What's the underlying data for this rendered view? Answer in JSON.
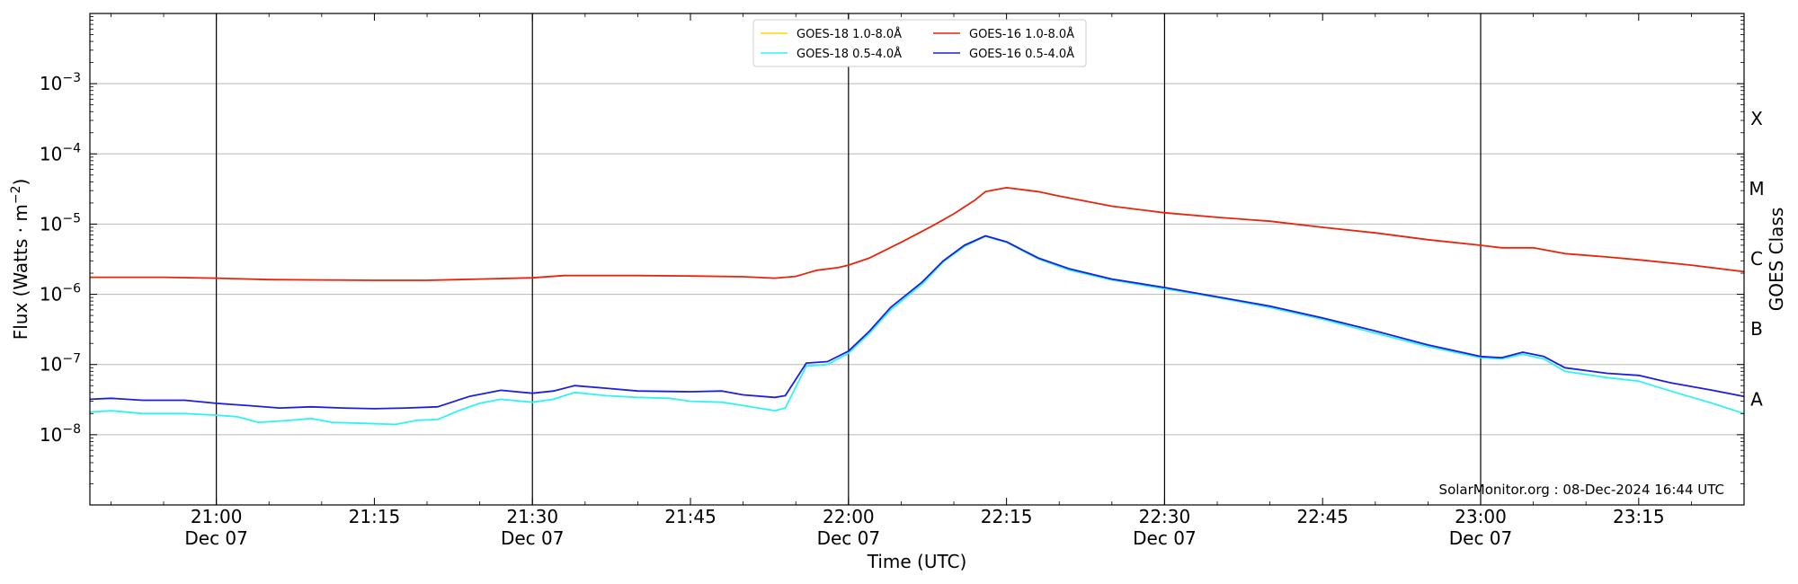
{
  "chart_data": {
    "type": "line",
    "title": "",
    "xlabel": "Time (UTC)",
    "ylabel": "Flux (Watts · m⁻²)",
    "right_label": "GOES Class",
    "y_scale": "log",
    "ylim": [
      1e-09,
      0.01
    ],
    "xlim_minutes": [
      "20:48",
      "23:25"
    ],
    "grid": "horizontal",
    "legend_position": "top-center",
    "credit": "SolarMonitor.org : 08-Dec-2024 16:44 UTC",
    "x_ticks": [
      {
        "time": "21:00",
        "label": "21:00",
        "sublabel": "Dec 07"
      },
      {
        "time": "21:15",
        "label": "21:15",
        "sublabel": ""
      },
      {
        "time": "21:30",
        "label": "21:30",
        "sublabel": "Dec 07"
      },
      {
        "time": "21:45",
        "label": "21:45",
        "sublabel": ""
      },
      {
        "time": "22:00",
        "label": "22:00",
        "sublabel": "Dec 07"
      },
      {
        "time": "22:15",
        "label": "22:15",
        "sublabel": ""
      },
      {
        "time": "22:30",
        "label": "22:30",
        "sublabel": "Dec 07"
      },
      {
        "time": "22:45",
        "label": "22:45",
        "sublabel": ""
      },
      {
        "time": "23:00",
        "label": "23:00",
        "sublabel": "Dec 07"
      },
      {
        "time": "23:15",
        "label": "23:15",
        "sublabel": ""
      }
    ],
    "vertical_markers": [
      "21:00",
      "21:30",
      "22:00",
      "22:30",
      "23:00"
    ],
    "y_ticks": [
      {
        "value": 1e-08,
        "base": "10",
        "exp": "−8"
      },
      {
        "value": 1e-07,
        "base": "10",
        "exp": "−7"
      },
      {
        "value": 1e-06,
        "base": "10",
        "exp": "−6"
      },
      {
        "value": 1e-05,
        "base": "10",
        "exp": "−5"
      },
      {
        "value": 0.0001,
        "base": "10",
        "exp": "−4"
      },
      {
        "value": 0.001,
        "base": "10",
        "exp": "−3"
      }
    ],
    "goes_classes": [
      {
        "label": "A",
        "value": 3.2e-08
      },
      {
        "label": "B",
        "value": 3.2e-07
      },
      {
        "label": "C",
        "value": 3.2e-06
      },
      {
        "label": "M",
        "value": 3.2e-05
      },
      {
        "label": "X",
        "value": 0.00032
      }
    ],
    "series": [
      {
        "name": "GOES-18 1.0-8.0Å",
        "color": "#ffd700",
        "points": []
      },
      {
        "name": "GOES-16 1.0-8.0Å",
        "color": "#e8240c",
        "points": [
          [
            "20:48",
            1.75e-06
          ],
          [
            "20:55",
            1.75e-06
          ],
          [
            "21:00",
            1.7e-06
          ],
          [
            "21:05",
            1.62e-06
          ],
          [
            "21:10",
            1.6e-06
          ],
          [
            "21:15",
            1.58e-06
          ],
          [
            "21:20",
            1.58e-06
          ],
          [
            "21:25",
            1.65e-06
          ],
          [
            "21:30",
            1.72e-06
          ],
          [
            "21:33",
            1.85e-06
          ],
          [
            "21:40",
            1.85e-06
          ],
          [
            "21:45",
            1.82e-06
          ],
          [
            "21:50",
            1.78e-06
          ],
          [
            "21:53",
            1.7e-06
          ],
          [
            "21:55",
            1.8e-06
          ],
          [
            "21:57",
            2.2e-06
          ],
          [
            "21:59",
            2.4e-06
          ],
          [
            "22:00",
            2.6e-06
          ],
          [
            "22:02",
            3.3e-06
          ],
          [
            "22:05",
            5.5e-06
          ],
          [
            "22:08",
            9.5e-06
          ],
          [
            "22:10",
            1.4e-05
          ],
          [
            "22:12",
            2.2e-05
          ],
          [
            "22:13",
            2.9e-05
          ],
          [
            "22:15",
            3.3e-05
          ],
          [
            "22:18",
            2.9e-05
          ],
          [
            "22:20",
            2.5e-05
          ],
          [
            "22:25",
            1.8e-05
          ],
          [
            "22:30",
            1.45e-05
          ],
          [
            "22:35",
            1.25e-05
          ],
          [
            "22:40",
            1.1e-05
          ],
          [
            "22:45",
            9e-06
          ],
          [
            "22:50",
            7.5e-06
          ],
          [
            "22:55",
            6e-06
          ],
          [
            "23:00",
            5e-06
          ],
          [
            "23:02",
            4.6e-06
          ],
          [
            "23:05",
            4.6e-06
          ],
          [
            "23:08",
            3.8e-06
          ],
          [
            "23:12",
            3.4e-06
          ],
          [
            "23:15",
            3.1e-06
          ],
          [
            "23:20",
            2.6e-06
          ],
          [
            "23:25",
            2.1e-06
          ]
        ]
      },
      {
        "name": "GOES-18 0.5-4.0Å",
        "color": "#2ef3f3",
        "points": [
          [
            "20:48",
            2.1e-08
          ],
          [
            "20:50",
            2.2e-08
          ],
          [
            "20:53",
            2e-08
          ],
          [
            "20:57",
            2e-08
          ],
          [
            "21:00",
            1.9e-08
          ],
          [
            "21:02",
            1.8e-08
          ],
          [
            "21:04",
            1.5e-08
          ],
          [
            "21:07",
            1.6e-08
          ],
          [
            "21:09",
            1.7e-08
          ],
          [
            "21:11",
            1.5e-08
          ],
          [
            "21:14",
            1.45e-08
          ],
          [
            "21:17",
            1.4e-08
          ],
          [
            "21:19",
            1.6e-08
          ],
          [
            "21:21",
            1.65e-08
          ],
          [
            "21:23",
            2.2e-08
          ],
          [
            "21:25",
            2.8e-08
          ],
          [
            "21:27",
            3.2e-08
          ],
          [
            "21:30",
            2.9e-08
          ],
          [
            "21:32",
            3.2e-08
          ],
          [
            "21:34",
            4e-08
          ],
          [
            "21:37",
            3.6e-08
          ],
          [
            "21:40",
            3.4e-08
          ],
          [
            "21:43",
            3.3e-08
          ],
          [
            "21:45",
            3e-08
          ],
          [
            "21:48",
            2.9e-08
          ],
          [
            "21:50",
            2.6e-08
          ],
          [
            "21:53",
            2.2e-08
          ],
          [
            "21:54",
            2.4e-08
          ],
          [
            "21:56",
            9.5e-08
          ],
          [
            "21:58",
            1e-07
          ],
          [
            "22:00",
            1.45e-07
          ],
          [
            "22:02",
            2.8e-07
          ],
          [
            "22:04",
            6e-07
          ],
          [
            "22:07",
            1.4e-06
          ],
          [
            "22:09",
            2.9e-06
          ],
          [
            "22:11",
            4.8e-06
          ],
          [
            "22:13",
            6.7e-06
          ],
          [
            "22:15",
            5.5e-06
          ],
          [
            "22:18",
            3.2e-06
          ],
          [
            "22:21",
            2.2e-06
          ],
          [
            "22:25",
            1.6e-06
          ],
          [
            "22:30",
            1.2e-06
          ],
          [
            "22:35",
            9e-07
          ],
          [
            "22:40",
            6.5e-07
          ],
          [
            "22:45",
            4.4e-07
          ],
          [
            "22:50",
            2.8e-07
          ],
          [
            "22:55",
            1.8e-07
          ],
          [
            "23:00",
            1.25e-07
          ],
          [
            "23:02",
            1.2e-07
          ],
          [
            "23:04",
            1.4e-07
          ],
          [
            "23:06",
            1.2e-07
          ],
          [
            "23:08",
            8e-08
          ],
          [
            "23:12",
            6.5e-08
          ],
          [
            "23:15",
            5.8e-08
          ],
          [
            "23:18",
            4.2e-08
          ],
          [
            "23:22",
            2.8e-08
          ],
          [
            "23:25",
            2e-08
          ]
        ]
      },
      {
        "name": "GOES-16 0.5-4.0Å",
        "color": "#1d1fe0",
        "points": [
          [
            "20:48",
            3.2e-08
          ],
          [
            "20:50",
            3.3e-08
          ],
          [
            "20:53",
            3.1e-08
          ],
          [
            "20:57",
            3.1e-08
          ],
          [
            "21:00",
            2.8e-08
          ],
          [
            "21:03",
            2.6e-08
          ],
          [
            "21:06",
            2.4e-08
          ],
          [
            "21:09",
            2.5e-08
          ],
          [
            "21:12",
            2.4e-08
          ],
          [
            "21:15",
            2.35e-08
          ],
          [
            "21:18",
            2.4e-08
          ],
          [
            "21:21",
            2.5e-08
          ],
          [
            "21:24",
            3.5e-08
          ],
          [
            "21:27",
            4.3e-08
          ],
          [
            "21:30",
            3.9e-08
          ],
          [
            "21:32",
            4.2e-08
          ],
          [
            "21:34",
            5e-08
          ],
          [
            "21:37",
            4.6e-08
          ],
          [
            "21:40",
            4.2e-08
          ],
          [
            "21:45",
            4.1e-08
          ],
          [
            "21:48",
            4.2e-08
          ],
          [
            "21:50",
            3.7e-08
          ],
          [
            "21:53",
            3.4e-08
          ],
          [
            "21:54",
            3.6e-08
          ],
          [
            "21:56",
            1.05e-07
          ],
          [
            "21:58",
            1.1e-07
          ],
          [
            "22:00",
            1.55e-07
          ],
          [
            "22:02",
            3e-07
          ],
          [
            "22:04",
            6.5e-07
          ],
          [
            "22:07",
            1.5e-06
          ],
          [
            "22:09",
            3e-06
          ],
          [
            "22:11",
            5e-06
          ],
          [
            "22:13",
            6.8e-06
          ],
          [
            "22:15",
            5.6e-06
          ],
          [
            "22:18",
            3.3e-06
          ],
          [
            "22:21",
            2.3e-06
          ],
          [
            "22:25",
            1.65e-06
          ],
          [
            "22:30",
            1.25e-06
          ],
          [
            "22:35",
            9.2e-07
          ],
          [
            "22:40",
            6.8e-07
          ],
          [
            "22:45",
            4.6e-07
          ],
          [
            "22:50",
            3e-07
          ],
          [
            "22:55",
            1.9e-07
          ],
          [
            "23:00",
            1.3e-07
          ],
          [
            "23:02",
            1.25e-07
          ],
          [
            "23:04",
            1.5e-07
          ],
          [
            "23:06",
            1.3e-07
          ],
          [
            "23:08",
            9e-08
          ],
          [
            "23:12",
            7.5e-08
          ],
          [
            "23:15",
            7e-08
          ],
          [
            "23:18",
            5.5e-08
          ],
          [
            "23:22",
            4.3e-08
          ],
          [
            "23:25",
            3.5e-08
          ]
        ]
      }
    ]
  }
}
